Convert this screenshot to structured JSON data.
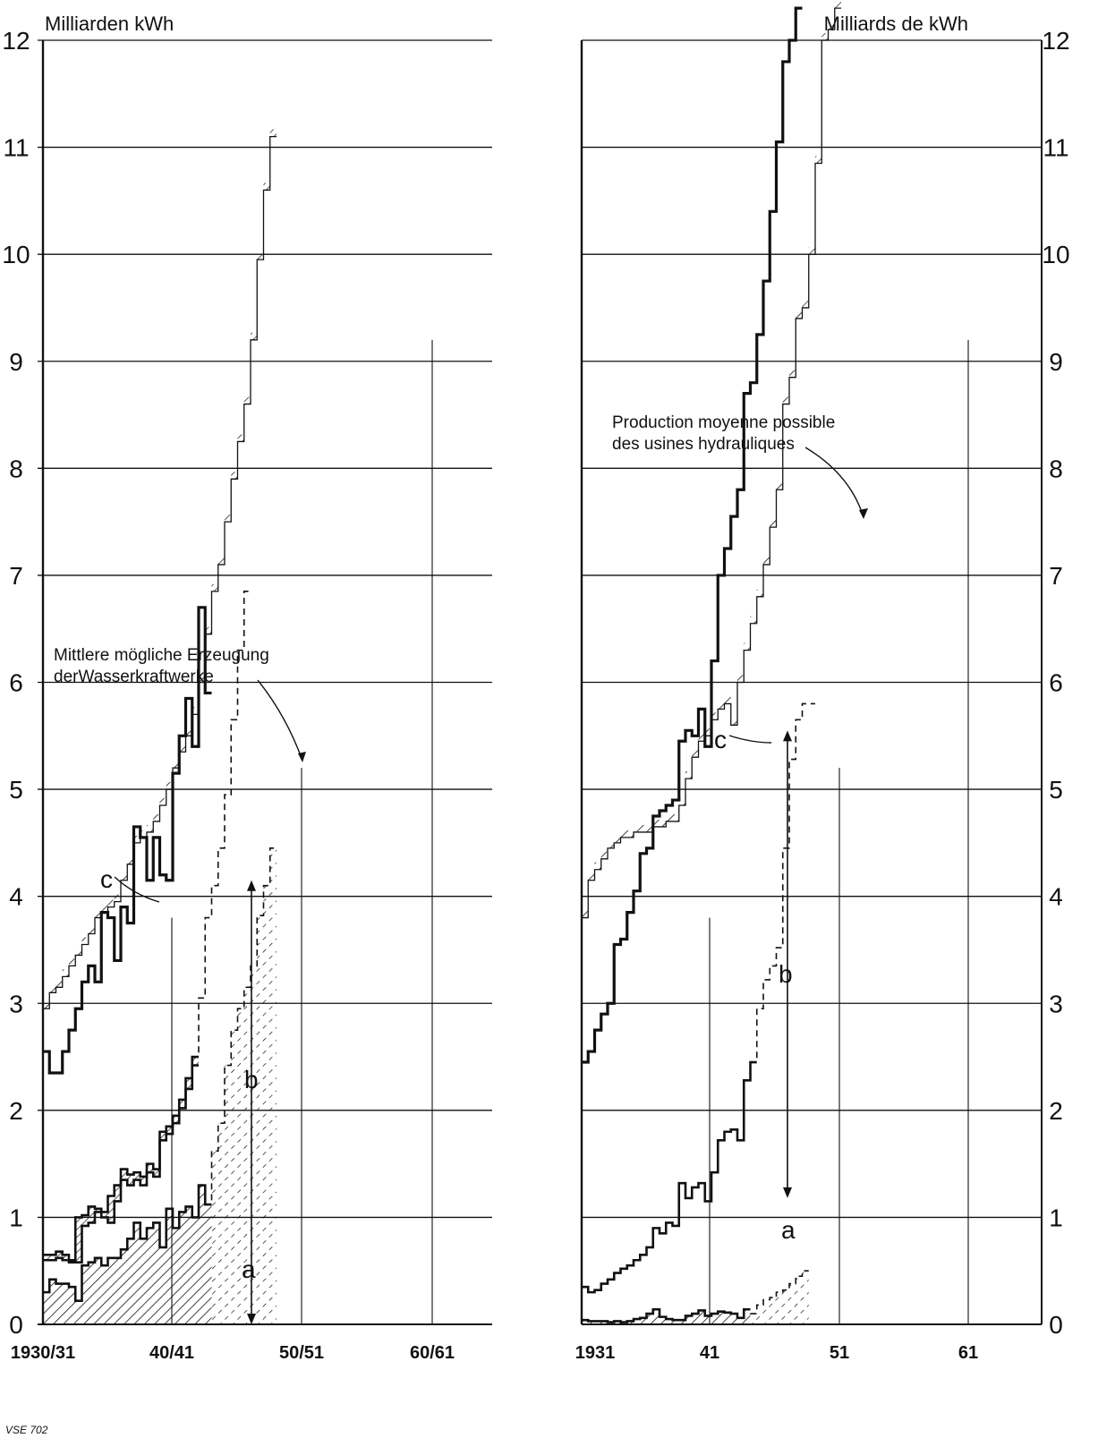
{
  "footer_code": "VSE 702",
  "chart_data": [
    {
      "type": "line",
      "title": "",
      "ylabel": "Milliarden kWh",
      "ylim": [
        0,
        12
      ],
      "yticks": [
        "0",
        "1",
        "2",
        "3",
        "4",
        "5",
        "6",
        "7",
        "8",
        "9",
        "10",
        "11",
        "12"
      ],
      "xtick_labels": [
        "1930/31",
        "40/41",
        "50/51",
        "60/61"
      ],
      "x_start_year": 1930,
      "x_end_year": 1964,
      "annotation": {
        "text_lines": [
          "Mittlere mögliche Erzeugung",
          "derWasserkraftwerke"
        ]
      },
      "curve_letters": [
        "a",
        "b",
        "c"
      ],
      "series": [
        {
          "key": "mean_possible",
          "values": [
            2.95,
            3.1,
            3.15,
            3.25,
            3.35,
            3.45,
            3.55,
            3.65,
            3.8,
            3.85,
            3.9,
            3.95,
            4.15,
            4.3,
            4.5,
            4.55,
            4.6,
            4.7,
            4.85,
            5.0,
            5.2,
            5.35,
            5.5,
            5.7,
            6.0,
            6.45,
            6.85,
            7.1,
            7.5,
            7.9,
            8.25,
            8.6,
            9.2,
            9.95,
            10.6,
            11.1
          ],
          "projected_from": 25
        },
        {
          "key": "c",
          "values": [
            2.55,
            2.35,
            2.35,
            2.55,
            2.75,
            2.95,
            3.2,
            3.35,
            3.2,
            3.85,
            3.8,
            3.4,
            3.9,
            3.75,
            4.65,
            4.55,
            4.15,
            4.55,
            4.2,
            4.15,
            5.15,
            5.5,
            5.85,
            5.4,
            6.7,
            5.9
          ]
        },
        {
          "key": "upper",
          "values": [
            0.65,
            0.65,
            0.68,
            0.65,
            0.6,
            1.0,
            1.02,
            1.1,
            1.08,
            1.05,
            1.2,
            1.3,
            1.45,
            1.4,
            1.42,
            1.38,
            1.5,
            1.45,
            1.8,
            1.85,
            1.95,
            2.1,
            2.3,
            2.5,
            3.05,
            3.8,
            4.1,
            4.45,
            4.95,
            5.65,
            6.3,
            6.85
          ],
          "projected_from": 24
        },
        {
          "key": "middle",
          "values": [
            0.6,
            0.6,
            0.62,
            0.6,
            0.58,
            0.58,
            0.92,
            0.95,
            1.05,
            1.0,
            0.95,
            1.15,
            1.35,
            1.3,
            1.35,
            1.3,
            1.42,
            1.38,
            1.72,
            1.78,
            1.88,
            2.02,
            2.2,
            2.42
          ]
        },
        {
          "key": "a",
          "values": [
            0.3,
            0.42,
            0.38,
            0.38,
            0.35,
            0.22,
            0.55,
            0.58,
            0.62,
            0.55,
            0.62,
            0.62,
            0.7,
            0.8,
            0.95,
            0.8,
            0.9,
            0.95,
            0.72,
            1.08,
            0.9,
            1.05,
            1.1,
            1.0,
            1.3,
            1.12,
            1.62,
            1.88,
            2.42,
            2.75,
            2.95,
            3.15,
            3.35,
            3.82,
            4.1,
            4.45
          ],
          "projected_from": 26
        }
      ]
    },
    {
      "type": "line",
      "title": "",
      "ylabel": "Milliards de kWh",
      "ylim": [
        0,
        12
      ],
      "yticks": [
        "0",
        "1",
        "2",
        "3",
        "4",
        "5",
        "6",
        "7",
        "8",
        "9",
        "10",
        "11",
        "12"
      ],
      "xtick_labels": [
        "1931",
        "41",
        "51",
        "61"
      ],
      "x_start_year": 1931,
      "x_end_year": 1965,
      "annotation": {
        "text_lines": [
          "Production moyenne possible",
          "des usines hydrauliques"
        ]
      },
      "curve_letters": [
        "a",
        "b",
        "c"
      ],
      "series": [
        {
          "key": "mean_possible",
          "values": [
            3.8,
            4.15,
            4.25,
            4.35,
            4.45,
            4.5,
            4.55,
            4.55,
            4.6,
            4.6,
            4.6,
            4.65,
            4.65,
            4.7,
            4.7,
            4.85,
            5.1,
            5.3,
            5.45,
            5.5,
            5.65,
            5.75,
            5.8,
            5.6,
            6.0,
            6.3,
            6.55,
            6.8,
            7.1,
            7.45,
            7.8,
            8.6,
            8.85,
            9.4,
            9.5,
            10.0,
            10.85,
            12.0,
            12.1,
            12.3
          ],
          "projected_from": 34
        },
        {
          "key": "c",
          "values": [
            2.45,
            2.55,
            2.75,
            2.9,
            3.0,
            3.55,
            3.6,
            3.85,
            4.05,
            4.4,
            4.45,
            4.75,
            4.8,
            4.85,
            4.9,
            5.45,
            5.55,
            5.5,
            5.75,
            5.4,
            6.2,
            7.0,
            7.25,
            7.55,
            7.8,
            8.7,
            8.8,
            9.25,
            9.75,
            10.4,
            11.05,
            11.8,
            12.0,
            12.3
          ]
        },
        {
          "key": "b",
          "values": [
            0.35,
            0.3,
            0.32,
            0.38,
            0.42,
            0.48,
            0.52,
            0.55,
            0.6,
            0.65,
            0.72,
            0.9,
            0.85,
            0.95,
            0.92,
            1.32,
            1.18,
            1.28,
            1.32,
            1.15,
            1.42,
            1.72,
            1.8,
            1.82,
            1.72,
            2.28,
            2.45,
            2.95,
            3.22,
            3.35,
            3.52,
            4.45,
            5.28,
            5.65,
            5.8,
            5.8
          ],
          "projected_from": 27
        },
        {
          "key": "a",
          "values": [
            0.04,
            0.03,
            0.03,
            0.03,
            0.02,
            0.03,
            0.02,
            0.03,
            0.05,
            0.06,
            0.1,
            0.14,
            0.07,
            0.05,
            0.04,
            0.04,
            0.08,
            0.1,
            0.13,
            0.08,
            0.1,
            0.12,
            0.11,
            0.1,
            0.06,
            0.14,
            0.1,
            0.18,
            0.23,
            0.25,
            0.3,
            0.32,
            0.38,
            0.45,
            0.5
          ],
          "projected_from": 26
        }
      ]
    }
  ]
}
